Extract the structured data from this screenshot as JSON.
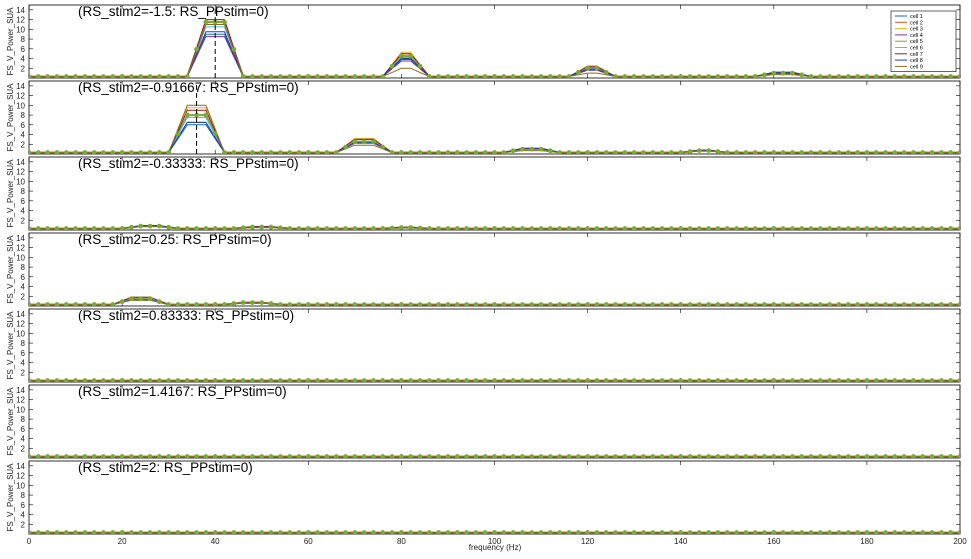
{
  "chart_data": {
    "type": "line",
    "xlabel": "frequency (Hz)",
    "ylabel": "FS_V_Power_SUA",
    "xlim": [
      0,
      200
    ],
    "ylim": [
      0,
      15
    ],
    "x_ticks": [
      0,
      20,
      40,
      60,
      80,
      100,
      120,
      140,
      160,
      180,
      200
    ],
    "y_ticks": [
      2,
      4,
      6,
      8,
      10,
      12,
      14
    ],
    "legend": {
      "placement": "top-right",
      "entries": [
        "cell 1",
        "cell 2",
        "cell 3",
        "cell 4",
        "cell 5",
        "cell 6",
        "cell 7",
        "cell 8",
        "cell 9"
      ]
    },
    "colors": [
      "#0072BD",
      "#D95319",
      "#EDB120",
      "#7E2F8E",
      "#77AC30",
      "#4DBEEE",
      "#A2142F",
      "#1f3fa8",
      "#8c6d1f"
    ],
    "marker_series_color": "#77AC30",
    "baseline": 0.3,
    "panels": [
      {
        "title": "(RS_stim2=-1.5: RS_PPstim=0)",
        "dashed_marker_x": 40,
        "peaks": [
          {
            "center": 40,
            "heights": [
              9.0,
              11.5,
              12.0,
              8.5,
              11.5,
              10.5,
              12.0,
              9.5,
              11.0
            ]
          },
          {
            "center": 81,
            "heights": [
              3.8,
              5.0,
              5.3,
              3.5,
              4.5,
              4.2,
              5.0,
              4.0,
              2.0
            ]
          },
          {
            "center": 121,
            "heights": [
              1.8,
              2.3,
              2.5,
              1.6,
              2.0,
              2.0,
              2.3,
              1.8,
              1.0
            ]
          },
          {
            "center": 162,
            "heights": [
              1.2,
              1.0,
              1.1,
              0.9,
              1.0,
              1.1,
              1.0,
              1.2,
              0.7
            ]
          }
        ]
      },
      {
        "title": "(RS_stim2=-0.91667: RS_PPstim=0)",
        "dashed_marker_x": 36,
        "peaks": [
          {
            "center": 36,
            "heights": [
              6.0,
              8.0,
              9.5,
              6.5,
              8.0,
              7.5,
              9.0,
              6.5,
              10.0
            ]
          },
          {
            "center": 72,
            "heights": [
              2.5,
              3.0,
              3.2,
              2.2,
              2.5,
              2.6,
              3.0,
              2.4,
              1.8
            ]
          },
          {
            "center": 108,
            "heights": [
              1.0,
              1.1,
              1.2,
              0.9,
              1.0,
              1.0,
              1.1,
              1.2,
              0.7
            ]
          },
          {
            "center": 145,
            "heights": [
              0.7,
              0.8,
              0.8,
              0.7,
              0.7,
              0.7,
              0.8,
              0.7,
              0.6
            ]
          }
        ]
      },
      {
        "title": "(RS_stim2=-0.33333: RS_PPstim=0)",
        "dashed_marker_x": 0,
        "peaks": [
          {
            "center": 26,
            "heights": [
              0.8,
              0.9,
              0.9,
              0.8,
              0.8,
              0.8,
              0.9,
              0.8,
              0.7
            ]
          },
          {
            "center": 50,
            "heights": [
              0.6,
              0.7,
              0.6,
              0.6,
              0.6,
              0.6,
              0.7,
              0.6,
              0.5
            ]
          },
          {
            "center": 81,
            "heights": [
              0.5,
              0.6,
              0.6,
              0.5,
              0.5,
              0.5,
              0.6,
              0.5,
              0.5
            ]
          }
        ]
      },
      {
        "title": "(RS_stim2=0.25: RS_PPstim=0)",
        "dashed_marker_x": 0,
        "peaks": [
          {
            "center": 24,
            "heights": [
              1.3,
              1.8,
              1.6,
              1.2,
              1.5,
              1.4,
              1.8,
              1.3,
              1.2
            ]
          },
          {
            "center": 48,
            "heights": [
              0.6,
              0.8,
              0.7,
              0.6,
              0.7,
              0.6,
              0.7,
              0.6,
              0.6
            ]
          }
        ]
      },
      {
        "title": "(RS_stim2=0.83333: RS_PPstim=0)",
        "dashed_marker_x": 0,
        "peaks": []
      },
      {
        "title": "(RS_stim2=1.4167: RS_PPstim=0)",
        "dashed_marker_x": 0,
        "peaks": []
      },
      {
        "title": "(RS_stim2=2: RS_PPstim=0)",
        "dashed_marker_x": 0,
        "peaks": []
      }
    ]
  }
}
